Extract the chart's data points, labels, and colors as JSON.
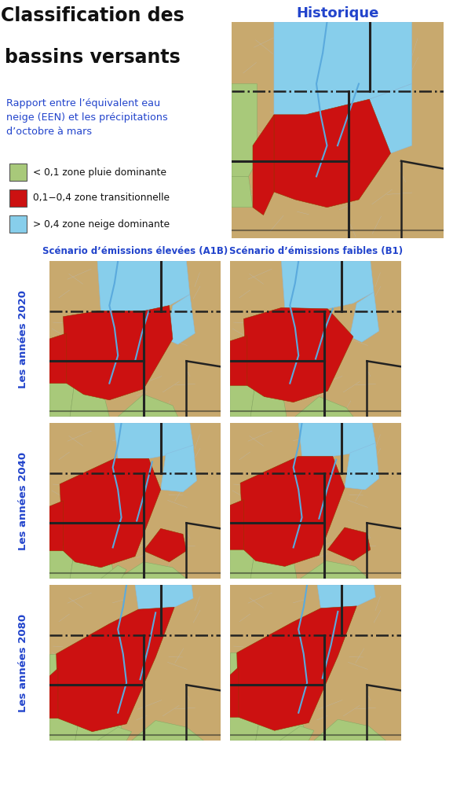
{
  "title_line1": "Classification des",
  "title_line2": "bassins versants",
  "subtitle": "Rapport entre l’équivalent eau\nneige (EEN) et les précipitations\nd’octobre à mars",
  "legend_items": [
    {
      "color": "#a8c97a",
      "label": "< 0,1 zone pluie dominante"
    },
    {
      "color": "#cc1111",
      "label": "0,1−0,4 zone transitionnelle"
    },
    {
      "color": "#87ceeb",
      "label": "> 0,4 zone neige dominante"
    }
  ],
  "col_headers": [
    "Historique",
    "Scénario d’émissions élevées (A1B)",
    "Scénario d’émissions faibles (B1)"
  ],
  "row_labels": [
    "Les années 2020",
    "Les années 2040",
    "Les années 2080"
  ],
  "bg_color": "#ffffff",
  "text_blue": "#2244cc",
  "text_black": "#111111",
  "map_bg": "#c8a96e",
  "map_snow": "#87ceeb",
  "map_rain": "#a8c97a",
  "map_trans": "#cc1111",
  "map_river": "#5aaadd",
  "map_border_col": "#222222"
}
